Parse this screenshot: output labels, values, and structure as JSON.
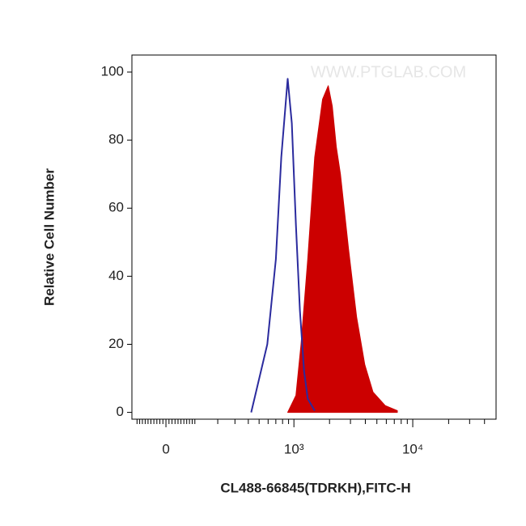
{
  "chart_data": {
    "type": "histogram-overlay",
    "watermark": "WWW.PTGLAB.COM",
    "x_label": "CL488-66845(TDRKH),FITC-H",
    "y_label": "Relative Cell Number",
    "xscale": "asinh",
    "xlim": [
      -120,
      50000
    ],
    "ylim": [
      -2,
      105
    ],
    "xticks": [
      {
        "value": 0,
        "label": "0"
      },
      {
        "value": 1000,
        "label": "10³"
      },
      {
        "value": 10000,
        "label": "10⁴"
      }
    ],
    "xminorticks": [
      -100,
      -90,
      -80,
      -70,
      -60,
      -50,
      -40,
      -30,
      -20,
      -10,
      10,
      20,
      30,
      40,
      50,
      60,
      70,
      80,
      90,
      100,
      200,
      300,
      400,
      500,
      600,
      700,
      800,
      900,
      2000,
      3000,
      4000,
      5000,
      6000,
      7000,
      8000,
      9000,
      20000,
      30000,
      40000
    ],
    "yticks": [
      0,
      20,
      40,
      60,
      80,
      100
    ],
    "series": [
      {
        "color": "#cc0000",
        "fill": true,
        "x": [
          885,
          1040,
          1150,
          1310,
          1500,
          1746,
          1950,
          2110,
          2280,
          2470,
          2890,
          3380,
          3960,
          4640,
          5870,
          7420
        ],
        "values": [
          0,
          5,
          20,
          45,
          75,
          92,
          96,
          90,
          78,
          70,
          48,
          28,
          14,
          6,
          2,
          0.5
        ]
      },
      {
        "color": "#2b2b9e",
        "fill": false,
        "x": [
          425,
          590,
          700,
          780,
          885,
          960,
          1040,
          1125,
          1220,
          1310,
          1500
        ],
        "values": [
          0,
          20,
          45,
          75,
          98,
          85,
          55,
          30,
          12,
          4,
          0.5
        ]
      }
    ]
  }
}
